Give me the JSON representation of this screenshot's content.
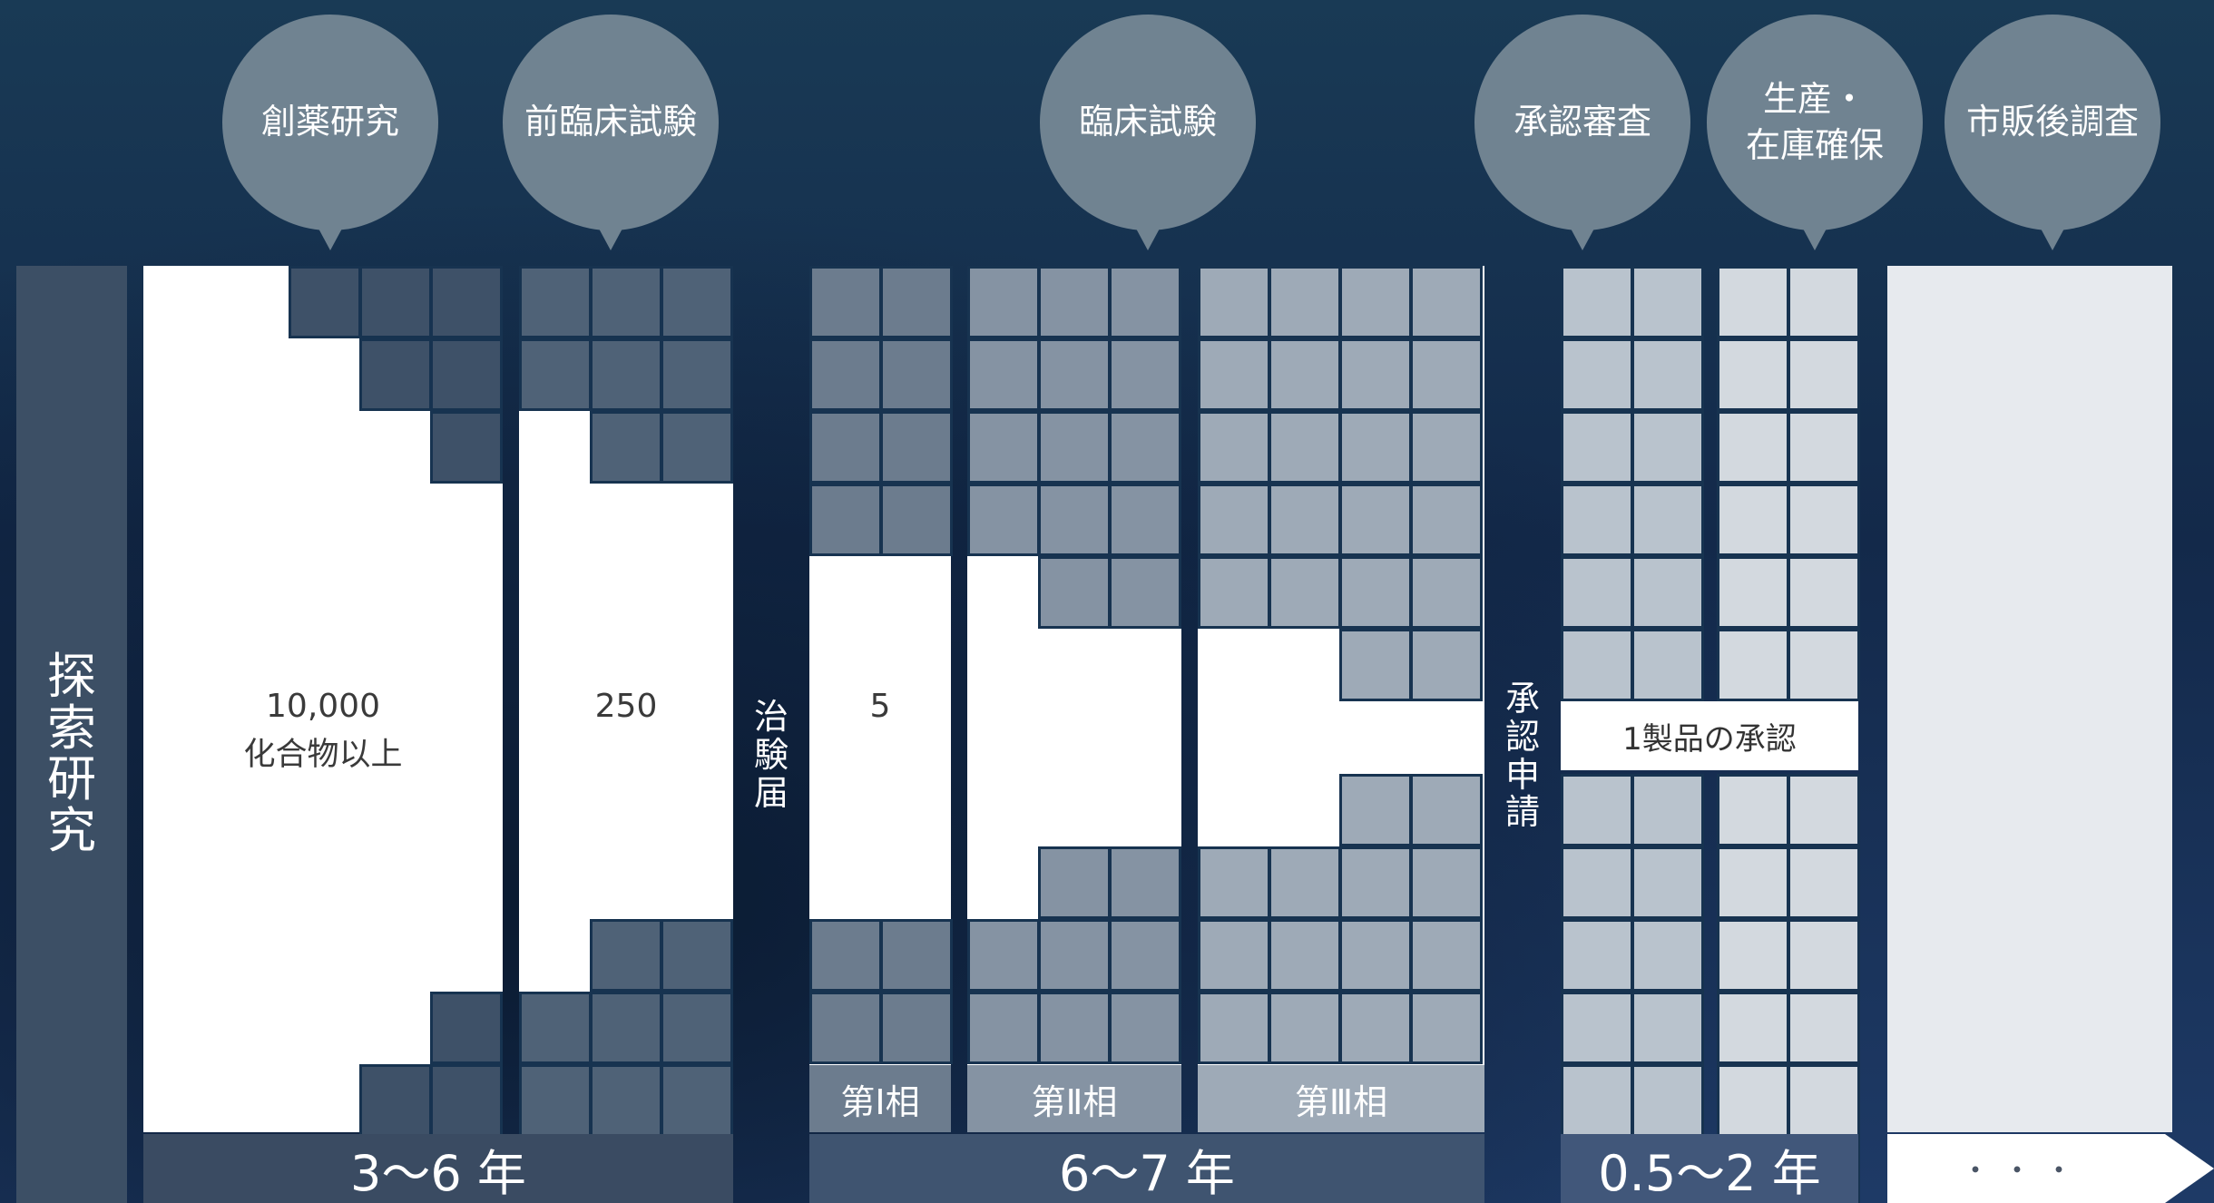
{
  "bubbles": [
    {
      "id": "discovery",
      "label": "創薬研究"
    },
    {
      "id": "preclinical",
      "label": "前臨床試験"
    },
    {
      "id": "clinical",
      "label": "臨床試験"
    },
    {
      "id": "approval",
      "label": "承認審査"
    },
    {
      "id": "production",
      "label": "生産・\n在庫確保"
    },
    {
      "id": "postmarket",
      "label": "市販後調査"
    }
  ],
  "side_labels": {
    "exploratory_research": "探索研究",
    "clinical_trial_notification": "治験届",
    "approval_application": "承認申請"
  },
  "counts": {
    "compounds_number": "10,000",
    "compounds_unit": "化合物以上",
    "preclinical": "250",
    "phase1": "5",
    "approved": "1製品の承認"
  },
  "phases": {
    "phase1": "第Ⅰ相",
    "phase2": "第Ⅱ相",
    "phase3": "第Ⅲ相"
  },
  "durations": {
    "research": "3～6 年",
    "clinical": "6～7 年",
    "approval": "0.5～2 年",
    "postmarket": "・・・"
  },
  "colors": {
    "background": "#14304c",
    "bubble": "#708391",
    "exploratory_bar": "#3c4f65",
    "discovery_cells": "#3e5168",
    "preclinical_cells": "#4f6277",
    "phase1_cells": "#6c7c8e",
    "phase2_cells": "#8593a3",
    "phase3_cells": "#9eaab7",
    "approval_cells": "#b9c3cd",
    "production_cells": "#d3d9df",
    "postmarket_panel": "#e7eaee"
  }
}
